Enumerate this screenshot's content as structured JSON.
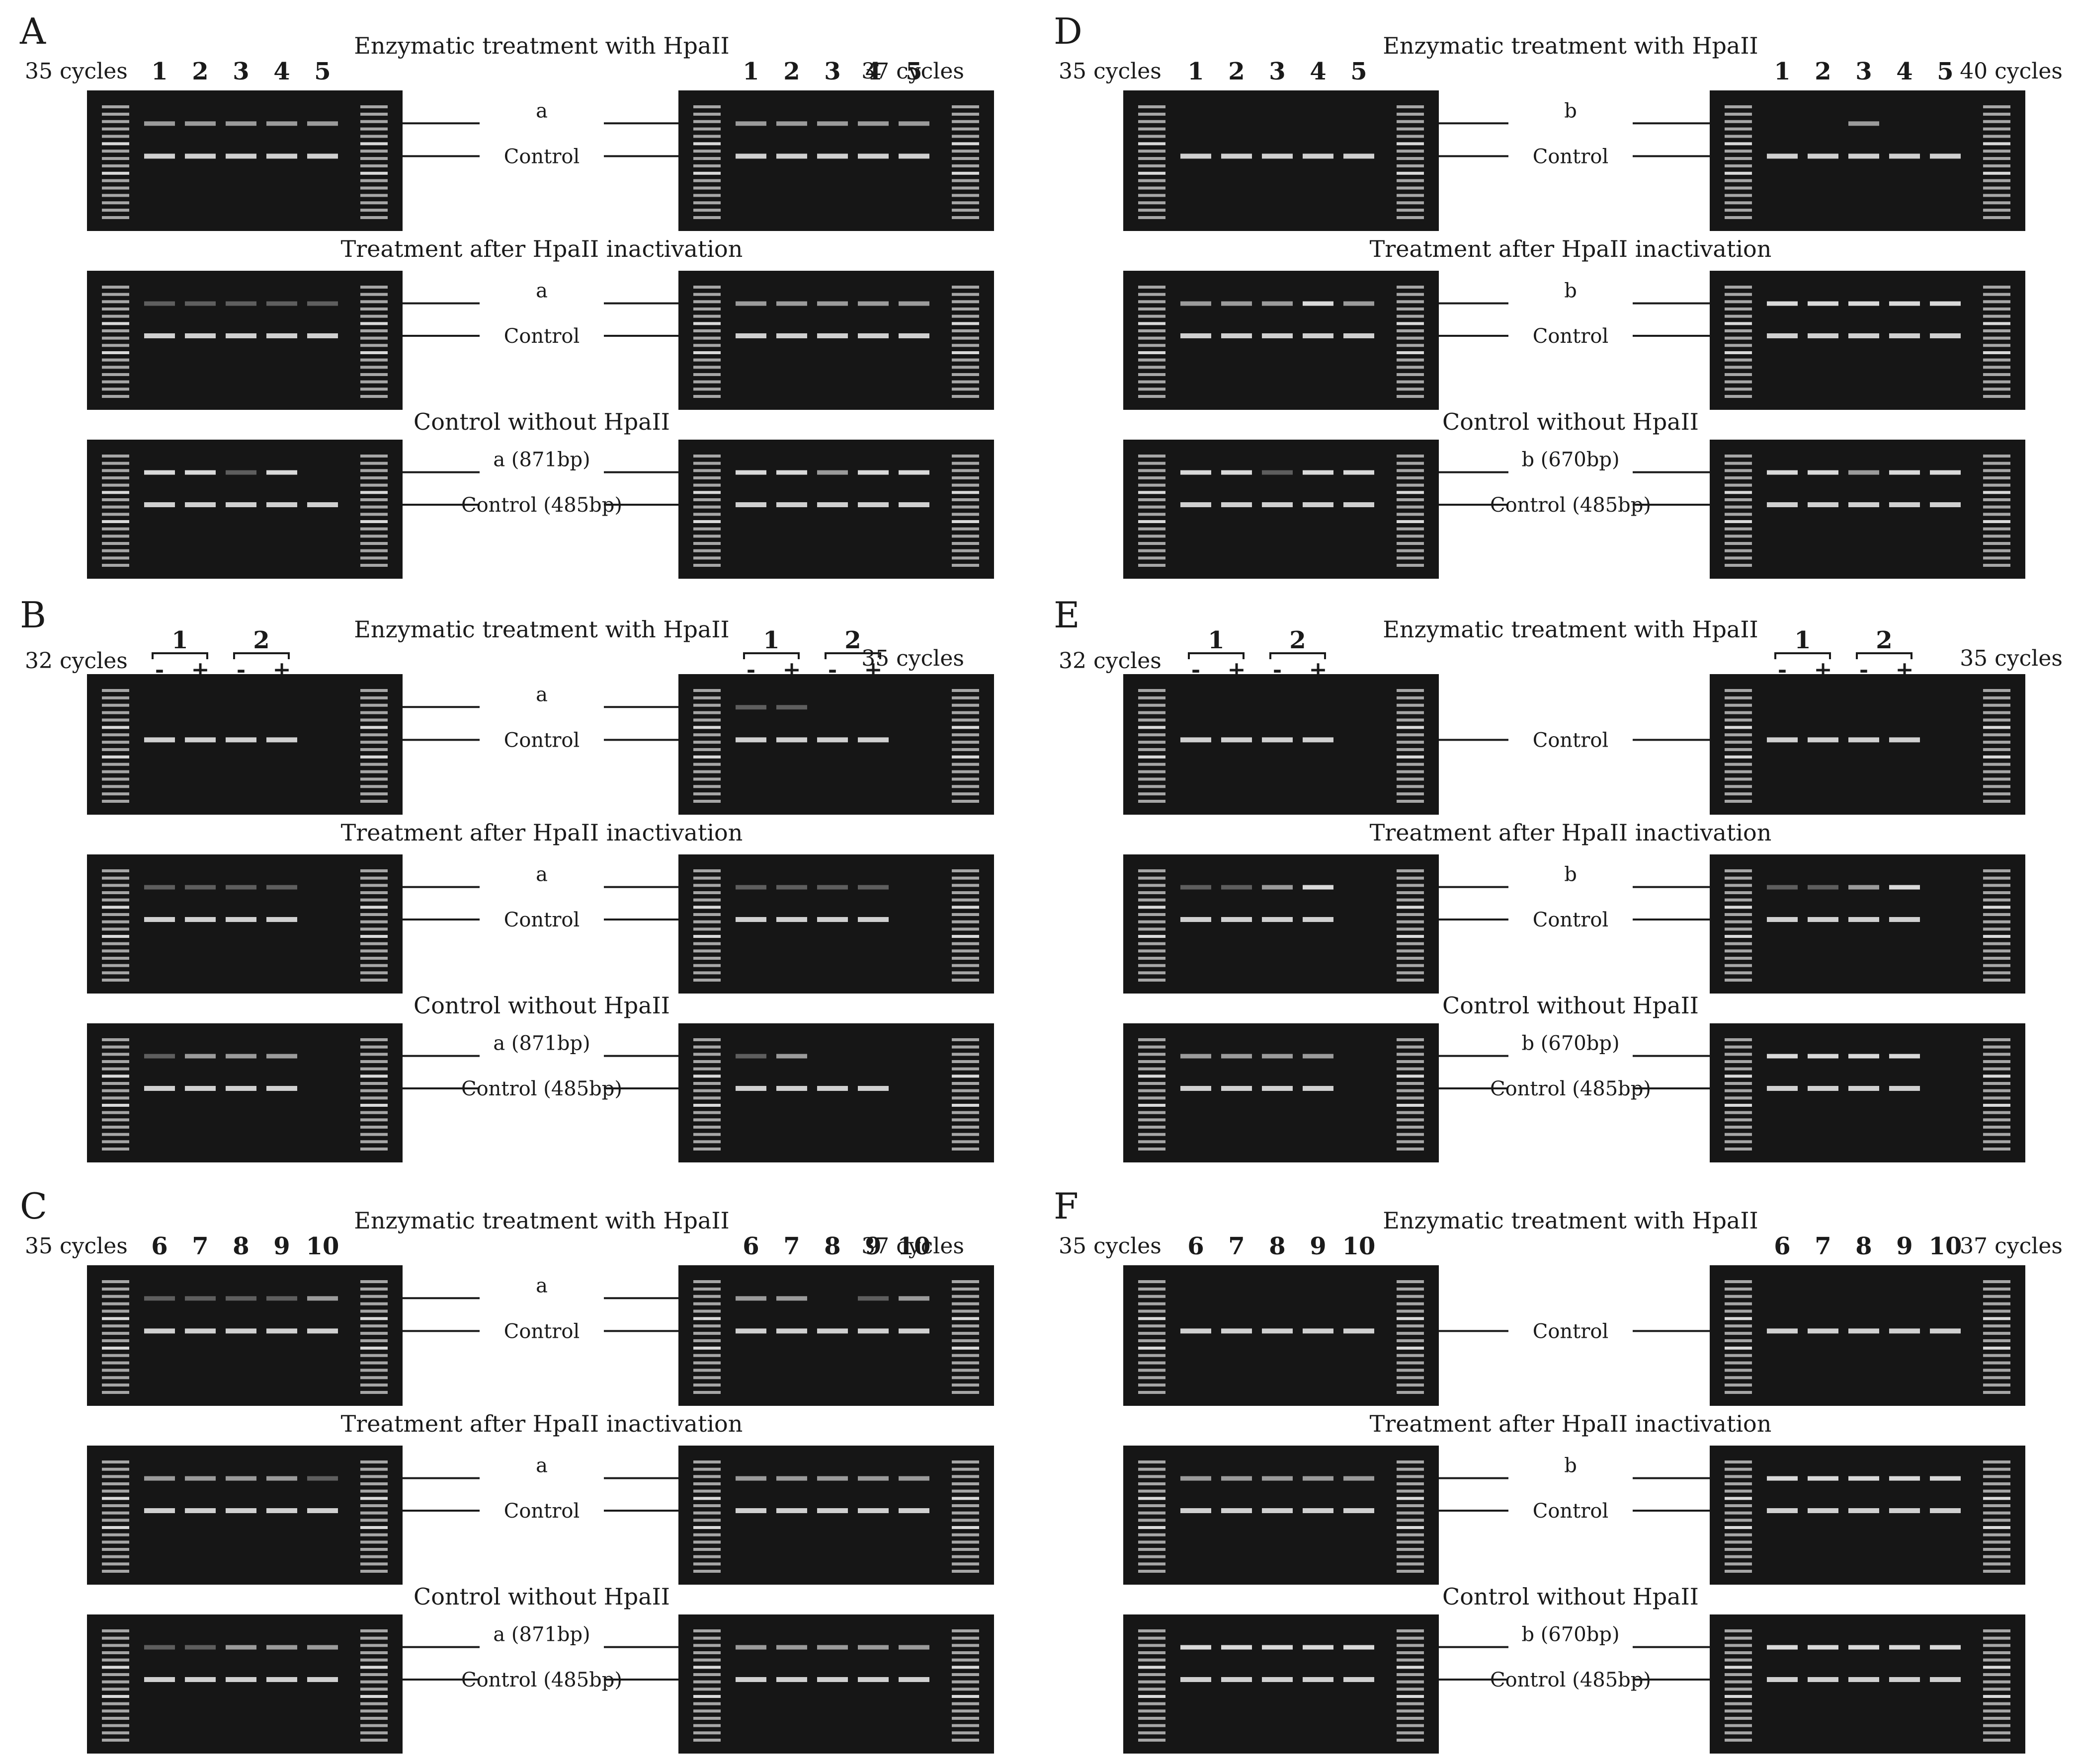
{
  "labels": {
    "enz": "Enzymatic treatment with HpaII",
    "after": "Treatment after HpaII inactivation",
    "ctrl": "Control without HpaII",
    "band_control": "Control",
    "band_control_size": "Control (485bp)",
    "band_a": "a",
    "band_a_size": "a (871bp)",
    "band_b": "b",
    "band_b_size": "b (670bp)"
  },
  "colors": {
    "gel": "#161616",
    "band": "#e4e4e4",
    "text": "#1a1a1a"
  },
  "panels": [
    {
      "letter": "A",
      "target": "a",
      "type": "lanes",
      "left_cycles": "35 cycles",
      "right_cycles": "37 cycles",
      "lanes": [
        "1",
        "2",
        "3",
        "4",
        "5"
      ]
    },
    {
      "letter": "B",
      "target": "a",
      "type": "groups",
      "left_cycles": "32 cycles",
      "right_cycles": "35 cycles",
      "groups": [
        "1",
        "2"
      ],
      "signs": [
        "-",
        "+",
        "-",
        "+"
      ]
    },
    {
      "letter": "C",
      "target": "a",
      "type": "lanes",
      "left_cycles": "35 cycles",
      "right_cycles": "37 cycles",
      "lanes": [
        "6",
        "7",
        "8",
        "9",
        "10"
      ]
    },
    {
      "letter": "D",
      "target": "b",
      "type": "lanes",
      "left_cycles": "35 cycles",
      "right_cycles": "40 cycles",
      "lanes": [
        "1",
        "2",
        "3",
        "4",
        "5"
      ]
    },
    {
      "letter": "E",
      "target": "b",
      "type": "groups",
      "left_cycles": "32 cycles",
      "right_cycles": "35 cycles",
      "groups": [
        "1",
        "2"
      ],
      "signs": [
        "-",
        "+",
        "-",
        "+"
      ]
    },
    {
      "letter": "F",
      "target": "b",
      "type": "lanes",
      "left_cycles": "35 cycles",
      "right_cycles": "37 cycles",
      "lanes": [
        "6",
        "7",
        "8",
        "9",
        "10"
      ]
    }
  ],
  "bands": {
    "A": {
      "enz": [
        [
          2,
          2,
          2,
          2,
          2
        ],
        [
          2,
          2,
          2,
          2,
          2
        ]
      ],
      "after": [
        [
          1,
          1,
          1,
          1,
          1
        ],
        [
          2,
          2,
          2,
          2,
          2
        ]
      ],
      "ctrl": [
        [
          3,
          3,
          1,
          3,
          0
        ],
        [
          3,
          3,
          2,
          3,
          3
        ]
      ]
    },
    "B": {
      "enz": [
        [
          0,
          0,
          0,
          0
        ],
        [
          1,
          1,
          0,
          0
        ]
      ],
      "after": [
        [
          1,
          1,
          1,
          1
        ],
        [
          1,
          1,
          1,
          1
        ]
      ],
      "ctrl": [
        [
          1,
          2,
          2,
          2
        ],
        [
          1,
          2,
          0,
          0
        ]
      ]
    },
    "C": {
      "enz": [
        [
          1,
          1,
          1,
          1,
          2
        ],
        [
          2,
          2,
          0,
          1,
          2
        ]
      ],
      "after": [
        [
          2,
          2,
          2,
          2,
          1
        ],
        [
          2,
          2,
          2,
          2,
          2
        ]
      ],
      "ctrl": [
        [
          1,
          1,
          2,
          2,
          2
        ],
        [
          2,
          2,
          2,
          2,
          2
        ]
      ]
    },
    "D": {
      "enz": [
        [
          0,
          0,
          0,
          0,
          0
        ],
        [
          0,
          0,
          2,
          0,
          0
        ]
      ],
      "after": [
        [
          2,
          2,
          2,
          3,
          2
        ],
        [
          3,
          3,
          3,
          3,
          3
        ]
      ],
      "ctrl": [
        [
          3,
          3,
          1,
          3,
          3
        ],
        [
          3,
          3,
          2,
          3,
          3
        ]
      ]
    },
    "E": {
      "enz": [
        [
          0,
          0,
          0,
          0
        ],
        [
          0,
          0,
          0,
          0
        ]
      ],
      "after": [
        [
          1,
          1,
          2,
          3
        ],
        [
          1,
          1,
          2,
          3
        ]
      ],
      "ctrl": [
        [
          2,
          2,
          2,
          2
        ],
        [
          3,
          3,
          3,
          3
        ]
      ]
    },
    "F": {
      "enz": [
        [
          0,
          0,
          0,
          0,
          0
        ],
        [
          0,
          0,
          0,
          0,
          0
        ]
      ],
      "after": [
        [
          2,
          2,
          2,
          2,
          2
        ],
        [
          3,
          3,
          3,
          3,
          3
        ]
      ],
      "ctrl": [
        [
          3,
          3,
          3,
          3,
          3
        ],
        [
          3,
          3,
          3,
          3,
          3
        ]
      ]
    }
  }
}
